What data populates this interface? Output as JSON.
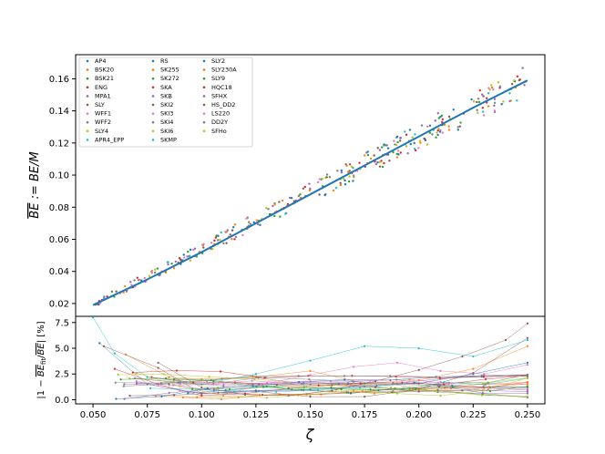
{
  "chart_data": [
    {
      "type": "scatter",
      "panel": "top",
      "ylabel": "$\\overline{BE}$ := BE/M",
      "ylabel_display": "BE := BE/M",
      "xlim": [
        0.042,
        0.258
      ],
      "ylim": [
        0.012,
        0.175
      ],
      "yticks": [
        0.02,
        0.04,
        0.06,
        0.08,
        0.1,
        0.12,
        0.14,
        0.16
      ],
      "ytick_labels": [
        "0.02",
        "0.04",
        "0.06",
        "0.08",
        "0.10",
        "0.12",
        "0.14",
        "0.16"
      ],
      "fit_line": {
        "x": [
          0.05,
          0.075,
          0.1,
          0.125,
          0.15,
          0.175,
          0.2,
          0.225,
          0.25
        ],
        "y": [
          0.019,
          0.035,
          0.052,
          0.07,
          0.088,
          0.106,
          0.124,
          0.142,
          0.159
        ],
        "color": "#1f77b4"
      },
      "legend_placement": "upper-left",
      "series": [
        {
          "name": "AP4",
          "color": "#1f77b4"
        },
        {
          "name": "BSK20",
          "color": "#ff7f0e"
        },
        {
          "name": "BSK21",
          "color": "#2ca02c"
        },
        {
          "name": "ENG",
          "color": "#d62728"
        },
        {
          "name": "MPA1",
          "color": "#9467bd"
        },
        {
          "name": "SLY",
          "color": "#8c564b"
        },
        {
          "name": "WFF1",
          "color": "#e377c2"
        },
        {
          "name": "WFF2",
          "color": "#7f7f7f"
        },
        {
          "name": "SLY4",
          "color": "#bcbd22"
        },
        {
          "name": "APR4_EPP",
          "color": "#17becf"
        },
        {
          "name": "RS",
          "color": "#1f77b4"
        },
        {
          "name": "SK255",
          "color": "#ff7f0e"
        },
        {
          "name": "SK272",
          "color": "#2ca02c"
        },
        {
          "name": "SKA",
          "color": "#d62728"
        },
        {
          "name": "SKB",
          "color": "#9467bd"
        },
        {
          "name": "SKI2",
          "color": "#8c564b"
        },
        {
          "name": "SKI3",
          "color": "#e377c2"
        },
        {
          "name": "SKI4",
          "color": "#7f7f7f"
        },
        {
          "name": "SKI6",
          "color": "#bcbd22"
        },
        {
          "name": "SKMP",
          "color": "#17becf"
        },
        {
          "name": "SLY2",
          "color": "#1f77b4"
        },
        {
          "name": "SLY230A",
          "color": "#ff7f0e"
        },
        {
          "name": "SLY9",
          "color": "#2ca02c"
        },
        {
          "name": "HQC18",
          "color": "#d62728"
        },
        {
          "name": "SFHX",
          "color": "#9467bd"
        },
        {
          "name": "HS_DD2",
          "color": "#8c564b"
        },
        {
          "name": "LS220",
          "color": "#e377c2"
        },
        {
          "name": "DD2Y",
          "color": "#7f7f7f"
        },
        {
          "name": "SFHo",
          "color": "#bcbd22"
        }
      ]
    },
    {
      "type": "line",
      "panel": "bottom",
      "xlabel": "ζ",
      "ylabel": "|1 − BE_fit/BE| [%]",
      "xlim": [
        0.042,
        0.258
      ],
      "ylim": [
        -0.4,
        8.1
      ],
      "xticks": [
        0.05,
        0.075,
        0.1,
        0.125,
        0.15,
        0.175,
        0.2,
        0.225,
        0.25
      ],
      "xtick_labels": [
        "0.050",
        "0.075",
        "0.100",
        "0.125",
        "0.150",
        "0.175",
        "0.200",
        "0.225",
        "0.250"
      ],
      "yticks": [
        0.0,
        2.5,
        5.0,
        7.5
      ],
      "ytick_labels": [
        "0.0",
        "2.5",
        "5.0",
        "7.5"
      ],
      "example_series": [
        {
          "name": "APR4_EPP",
          "x": [
            0.05,
            0.06,
            0.075,
            0.1,
            0.125,
            0.15,
            0.175,
            0.2,
            0.225,
            0.25
          ],
          "y": [
            8.0,
            4.5,
            2.2,
            1.5,
            2.5,
            3.8,
            5.2,
            5.0,
            4.2,
            5.8
          ]
        },
        {
          "name": "AP4",
          "x": [
            0.053,
            0.075,
            0.1,
            0.125,
            0.15,
            0.175,
            0.2,
            0.225,
            0.25
          ],
          "y": [
            5.5,
            1.5,
            0.6,
            0.9,
            1.0,
            1.3,
            1.6,
            2.5,
            3.6
          ]
        },
        {
          "name": "BSK20",
          "x": [
            0.065,
            0.085,
            0.1,
            0.125,
            0.15,
            0.175,
            0.2,
            0.225,
            0.25
          ],
          "y": [
            4.4,
            2.2,
            2.0,
            2.2,
            2.8,
            1.6,
            1.9,
            3.0,
            5.2
          ]
        },
        {
          "name": "SLY",
          "x": [
            0.055,
            0.08,
            0.1,
            0.125,
            0.15,
            0.175,
            0.2,
            0.225,
            0.25
          ],
          "y": [
            5.2,
            3.1,
            0.6,
            0.8,
            0.3,
            0.3,
            1.0,
            2.6,
            6.0
          ]
        },
        {
          "name": "SKI3",
          "x": [
            0.07,
            0.09,
            0.11,
            0.13,
            0.15,
            0.17,
            0.19,
            0.21,
            0.23,
            0.25
          ],
          "y": [
            1.8,
            0.9,
            0.5,
            1.6,
            2.4,
            3.2,
            3.6,
            2.8,
            2.5,
            3.4
          ]
        },
        {
          "name": "ENG",
          "x": [
            0.06,
            0.08,
            0.1,
            0.12,
            0.14,
            0.16,
            0.18,
            0.2,
            0.22,
            0.25
          ],
          "y": [
            3.0,
            1.5,
            0.4,
            0.6,
            1.1,
            1.4,
            1.2,
            0.8,
            0.9,
            1.7
          ]
        },
        {
          "name": "HS_DD2",
          "x": [
            0.08,
            0.1,
            0.12,
            0.14,
            0.16,
            0.18,
            0.2,
            0.22,
            0.24,
            0.25
          ],
          "y": [
            3.6,
            1.2,
            0.5,
            0.4,
            0.9,
            1.8,
            2.9,
            4.2,
            5.8,
            7.4
          ]
        },
        {
          "name": "SFHo",
          "x": [
            0.07,
            0.09,
            0.11,
            0.13,
            0.15,
            0.17,
            0.19,
            0.21,
            0.23,
            0.25
          ],
          "y": [
            2.6,
            1.3,
            0.4,
            0.2,
            0.5,
            0.9,
            0.6,
            0.4,
            0.9,
            2.1
          ]
        }
      ]
    }
  ]
}
